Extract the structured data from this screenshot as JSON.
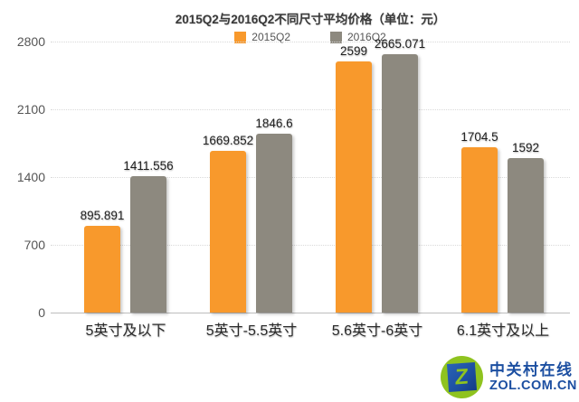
{
  "title": "2015Q2与2016Q2不同尺寸平均价格（单位：元）",
  "legend": [
    {
      "label": "2015Q2",
      "color": "#f8992c"
    },
    {
      "label": "2016Q2",
      "color": "#8d897f"
    }
  ],
  "chart_data": {
    "type": "bar",
    "title": "2015Q2与2016Q2不同尺寸平均价格（单位：元）",
    "xlabel": "",
    "ylabel": "",
    "unit": "元",
    "categories": [
      "5英寸及以下",
      "5英寸-5.5英寸",
      "5.6英寸-6英寸",
      "6.1英寸及以上"
    ],
    "series": [
      {
        "name": "2015Q2",
        "color": "#f8992c",
        "values": [
          895.891,
          1669.852,
          2599,
          1704.5
        ],
        "labels": [
          "895.891",
          "1669.852",
          "2599",
          "1704.5"
        ]
      },
      {
        "name": "2016Q2",
        "color": "#8d897f",
        "values": [
          1411.556,
          1846.6,
          2665.071,
          1592
        ],
        "labels": [
          "1411.556",
          "1846.6",
          "2665.071",
          "1592"
        ]
      }
    ],
    "ylim": [
      0,
      2800
    ],
    "yticks": [
      0,
      700,
      1400,
      2100,
      2800
    ],
    "ytick_labels": [
      "0",
      "700",
      "1400",
      "2100",
      "2800"
    ],
    "grid": "horizontal-dotted",
    "legend_position": "top-center"
  },
  "footer": {
    "logo_z": "Z",
    "logo_text_cn": "中关村在线",
    "logo_text_en": "ZOL.COM.CN"
  },
  "colors": {
    "bar_2015q2": "#f8992c",
    "bar_2016q2": "#8d897f",
    "gridline": "#d9d9d9",
    "axis_line": "#bdbdbd",
    "logo_green": "#8fc31f",
    "logo_blue": "#1e50a2",
    "logo_text_blue": "#1c4fa1"
  }
}
